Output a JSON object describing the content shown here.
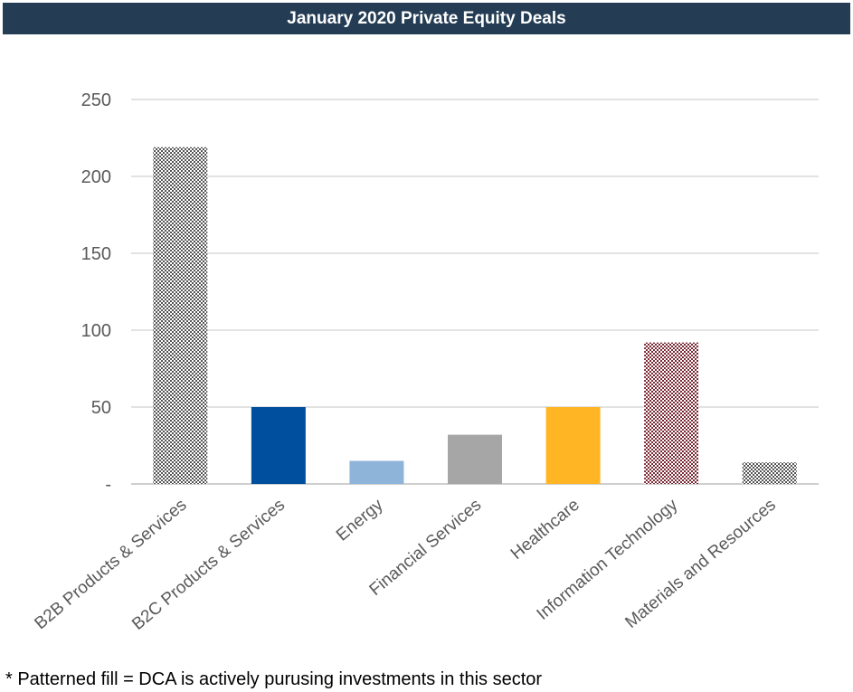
{
  "chart_data": {
    "type": "bar",
    "title": "January 2020 Private Equity Deals",
    "categories": [
      "B2B Products & Services",
      "B2C Products & Services",
      "Energy",
      "Financial Services",
      "Healthcare",
      "Information Technology",
      "Materials and Resources"
    ],
    "values": [
      219,
      50,
      15,
      32,
      50,
      92,
      14
    ],
    "patterned": [
      true,
      false,
      false,
      false,
      false,
      true,
      true
    ],
    "colors": [
      "#555555",
      "#004f9e",
      "#8fb4d9",
      "#a6a6a6",
      "#ffb524",
      "#7a2934",
      "#555555"
    ],
    "ylim": [
      0,
      250
    ],
    "yticks": [
      0,
      50,
      100,
      150,
      200,
      250
    ],
    "ytick_labels": [
      "-",
      "50",
      "100",
      "150",
      "200",
      "250"
    ],
    "grid": true,
    "legend": "none",
    "footnote": "* Patterned fill = DCA is actively purusing investments in this sector"
  }
}
